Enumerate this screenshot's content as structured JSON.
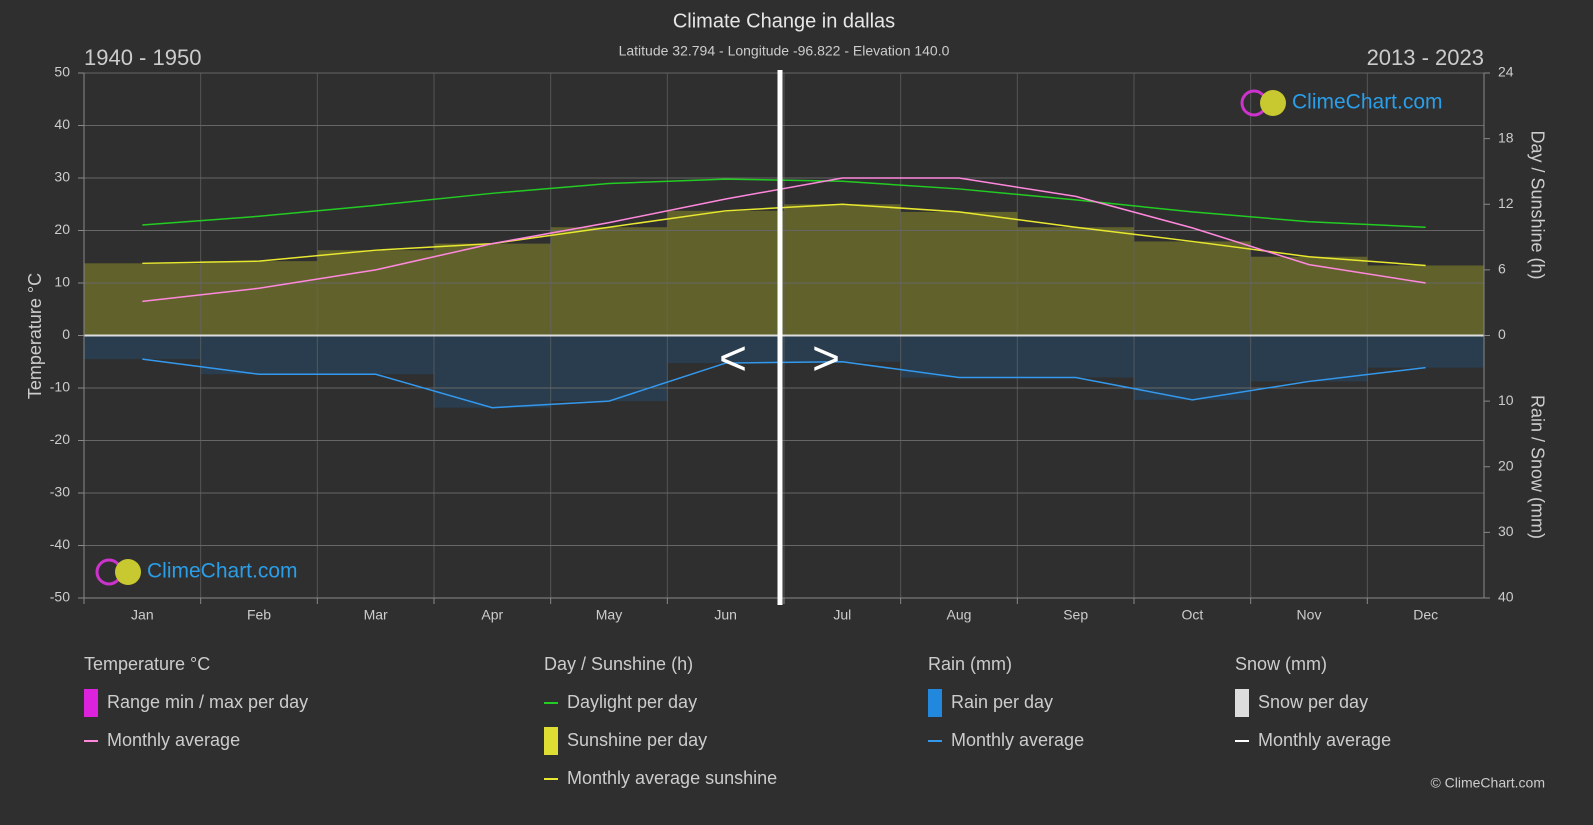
{
  "chart_data": {
    "type": "climate",
    "title": "Climate Change in dallas",
    "subtitle": "Latitude 32.794 - Longitude -96.822 - Elevation 140.0",
    "period_left": "1940 - 1950",
    "period_right": "2013 - 2023",
    "ylabel": "Temperature °C",
    "y2label": "Day / Sunshine (h)",
    "y3label": "Rain / Snow (mm)",
    "categories": [
      "Jan",
      "Feb",
      "Mar",
      "Apr",
      "May",
      "Jun",
      "Jul",
      "Aug",
      "Sep",
      "Oct",
      "Nov",
      "Dec"
    ],
    "ylim": [
      -50,
      50
    ],
    "yticks": [
      -50,
      -40,
      -30,
      -20,
      -10,
      0,
      10,
      20,
      30,
      40,
      50
    ],
    "y2lim": [
      0,
      24
    ],
    "y2ticks": [
      0,
      6,
      12,
      18,
      24
    ],
    "y3lim": [
      0,
      40
    ],
    "y3ticks": [
      0,
      10,
      20,
      30,
      40
    ],
    "grid": true,
    "series": [
      {
        "name": "Daylight per day",
        "color": "#22cc22",
        "axis": "y2",
        "values": [
          10.1,
          10.9,
          11.9,
          13.0,
          13.9,
          14.3,
          14.1,
          13.4,
          12.4,
          11.3,
          10.4,
          9.9
        ]
      },
      {
        "name": "Monthly average sunshine",
        "color": "#e8e830",
        "axis": "y2",
        "values": [
          6.6,
          6.8,
          7.8,
          8.4,
          9.9,
          11.4,
          12.0,
          11.3,
          9.9,
          8.6,
          7.2,
          6.4
        ]
      },
      {
        "name": "Monthly average",
        "color": "#ff88dd",
        "axis": "y",
        "values": [
          6.5,
          9.0,
          12.5,
          17.5,
          21.5,
          26.0,
          30.0,
          30.0,
          26.5,
          20.5,
          13.5,
          10.0
        ]
      },
      {
        "name": "Monthly average",
        "color": "#3399ee",
        "axis": "y3",
        "values": [
          3.6,
          5.9,
          5.9,
          11.0,
          10.0,
          4.2,
          4.0,
          6.4,
          6.4,
          9.8,
          7.0,
          4.9
        ]
      }
    ],
    "legend": [
      {
        "title": "Temperature °C",
        "items": [
          {
            "name": "Range min / max per day",
            "color": "#dd22dd",
            "swatch": "bar"
          },
          {
            "name": "Monthly average",
            "color": "#ff88dd",
            "swatch": "line"
          }
        ]
      },
      {
        "title": "Day / Sunshine (h)",
        "items": [
          {
            "name": "Daylight per day",
            "color": "#22cc22",
            "swatch": "line"
          },
          {
            "name": "Sunshine per day",
            "color": "#dddd33",
            "swatch": "bar"
          },
          {
            "name": "Monthly average sunshine",
            "color": "#e8e830",
            "swatch": "line"
          }
        ]
      },
      {
        "title": "Rain (mm)",
        "items": [
          {
            "name": "Rain per day",
            "color": "#2288dd",
            "swatch": "bar"
          },
          {
            "name": "Monthly average",
            "color": "#3399ee",
            "swatch": "line"
          }
        ]
      },
      {
        "title": "Snow (mm)",
        "items": [
          {
            "name": "Snow per day",
            "color": "#dddddd",
            "swatch": "bar"
          },
          {
            "name": "Monthly average",
            "color": "#ffffff",
            "swatch": "line"
          }
        ]
      }
    ],
    "nav": [
      "<",
      ">"
    ],
    "watermark": "ClimeChart.com",
    "copyright": "© ClimeChart.com"
  }
}
